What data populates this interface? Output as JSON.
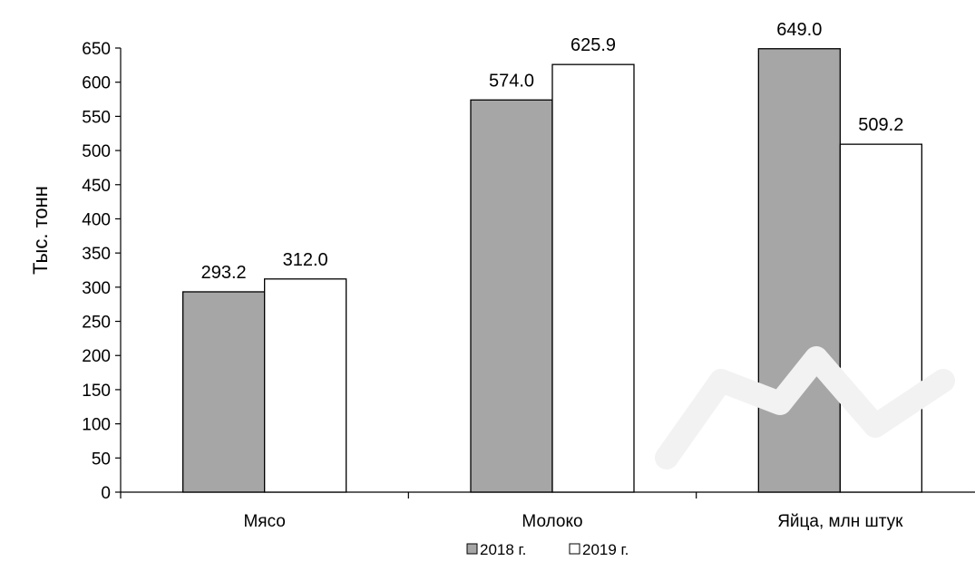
{
  "chart_data": {
    "type": "bar",
    "title": "",
    "xlabel": "",
    "ylabel": "Тыс. тонн",
    "categories": [
      "Мясо",
      "Молоко",
      "Яйца, млн штук"
    ],
    "series": [
      {
        "name": "2018 г.",
        "values": [
          293.2,
          574.0,
          649.0
        ],
        "labels": [
          "293.2",
          "574.0",
          "649.0"
        ],
        "color": "#a6a6a6"
      },
      {
        "name": "2019 г.",
        "values": [
          312.0,
          625.9,
          509.2
        ],
        "labels": [
          "312.0",
          "625.9",
          "509.2"
        ],
        "color": "#ffffff"
      }
    ],
    "ylim": [
      0,
      650
    ],
    "ytick_step": 50,
    "ytick_labels": [
      "0",
      "50",
      "100",
      "150",
      "200",
      "250",
      "300",
      "350",
      "400",
      "450",
      "500",
      "550",
      "600",
      "650"
    ],
    "grid": false,
    "legend": "bottom-center"
  }
}
